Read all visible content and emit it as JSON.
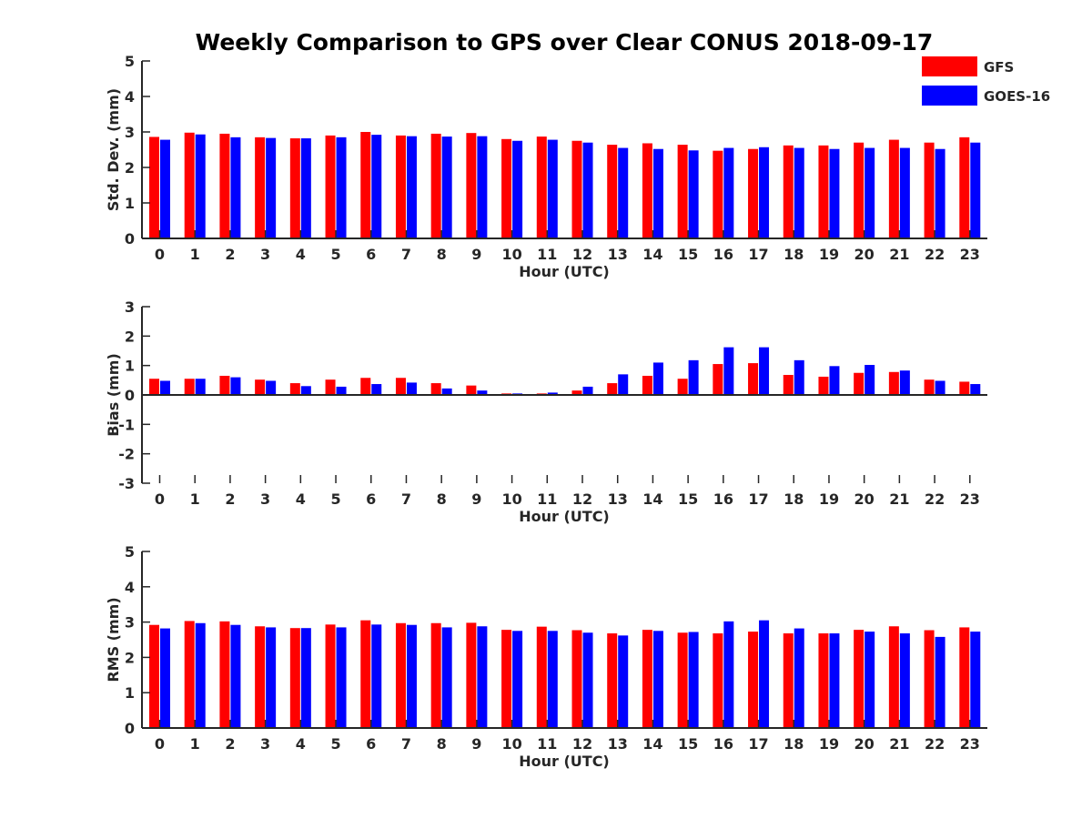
{
  "chart_data": {
    "type": "bar",
    "title": "Weekly Comparison to GPS over Clear CONUS 2018-09-17",
    "legend": {
      "placement": "top-right",
      "entries": [
        {
          "name": "GFS",
          "color": "#ff0000"
        },
        {
          "name": "GOES-16",
          "color": "#0000ff"
        }
      ]
    },
    "categories": [
      "0",
      "1",
      "2",
      "3",
      "4",
      "5",
      "6",
      "7",
      "8",
      "9",
      "10",
      "11",
      "12",
      "13",
      "14",
      "15",
      "16",
      "17",
      "18",
      "19",
      "20",
      "21",
      "22",
      "23"
    ],
    "panels": [
      {
        "ylabel": "Std. Dev. (mm)",
        "xlabel": "Hour (UTC)",
        "ylim": [
          0,
          5
        ],
        "yticks": [
          "0",
          "1",
          "2",
          "3",
          "4",
          "5"
        ],
        "grid": false,
        "series": [
          {
            "name": "GFS",
            "color": "#ff0000",
            "values": [
              2.86,
              2.98,
              2.95,
              2.85,
              2.82,
              2.9,
              3.0,
              2.9,
              2.95,
              2.97,
              2.8,
              2.87,
              2.75,
              2.64,
              2.68,
              2.64,
              2.47,
              2.52,
              2.62,
              2.62,
              2.7,
              2.78,
              2.7,
              2.85
            ]
          },
          {
            "name": "GOES-16",
            "color": "#0000ff",
            "values": [
              2.78,
              2.93,
              2.85,
              2.83,
              2.82,
              2.85,
              2.92,
              2.88,
              2.87,
              2.88,
              2.75,
              2.78,
              2.7,
              2.55,
              2.52,
              2.48,
              2.55,
              2.57,
              2.55,
              2.52,
              2.55,
              2.55,
              2.52,
              2.7
            ]
          }
        ]
      },
      {
        "ylabel": "Bias (mm)",
        "xlabel": "Hour (UTC)",
        "ylim": [
          -3,
          3
        ],
        "yticks": [
          "-3",
          "-2",
          "-1",
          "0",
          "1",
          "2",
          "3"
        ],
        "grid": false,
        "series": [
          {
            "name": "GFS",
            "color": "#ff0000",
            "values": [
              0.55,
              0.55,
              0.65,
              0.52,
              0.4,
              0.52,
              0.58,
              0.58,
              0.4,
              0.32,
              0.05,
              0.05,
              0.15,
              0.4,
              0.65,
              0.55,
              1.05,
              1.08,
              0.68,
              0.62,
              0.75,
              0.78,
              0.52,
              0.45
            ]
          },
          {
            "name": "GOES-16",
            "color": "#0000ff",
            "values": [
              0.48,
              0.55,
              0.6,
              0.48,
              0.3,
              0.28,
              0.37,
              0.42,
              0.22,
              0.15,
              0.05,
              0.08,
              0.28,
              0.7,
              1.1,
              1.18,
              1.62,
              1.62,
              1.18,
              0.98,
              1.02,
              0.83,
              0.48,
              0.37
            ]
          }
        ]
      },
      {
        "ylabel": "RMS (mm)",
        "xlabel": "Hour (UTC)",
        "ylim": [
          0,
          5
        ],
        "yticks": [
          "0",
          "1",
          "2",
          "3",
          "4",
          "5"
        ],
        "grid": false,
        "series": [
          {
            "name": "GFS",
            "color": "#ff0000",
            "values": [
              2.92,
              3.03,
              3.02,
              2.88,
              2.83,
              2.93,
              3.05,
              2.97,
              2.97,
              2.98,
              2.78,
              2.87,
              2.77,
              2.68,
              2.78,
              2.7,
              2.68,
              2.73,
              2.68,
              2.68,
              2.78,
              2.88,
              2.77,
              2.85
            ]
          },
          {
            "name": "GOES-16",
            "color": "#0000ff",
            "values": [
              2.82,
              2.97,
              2.92,
              2.85,
              2.83,
              2.85,
              2.93,
              2.92,
              2.85,
              2.88,
              2.75,
              2.75,
              2.7,
              2.62,
              2.75,
              2.72,
              3.02,
              3.05,
              2.82,
              2.68,
              2.73,
              2.68,
              2.58,
              2.73
            ]
          }
        ]
      }
    ]
  }
}
